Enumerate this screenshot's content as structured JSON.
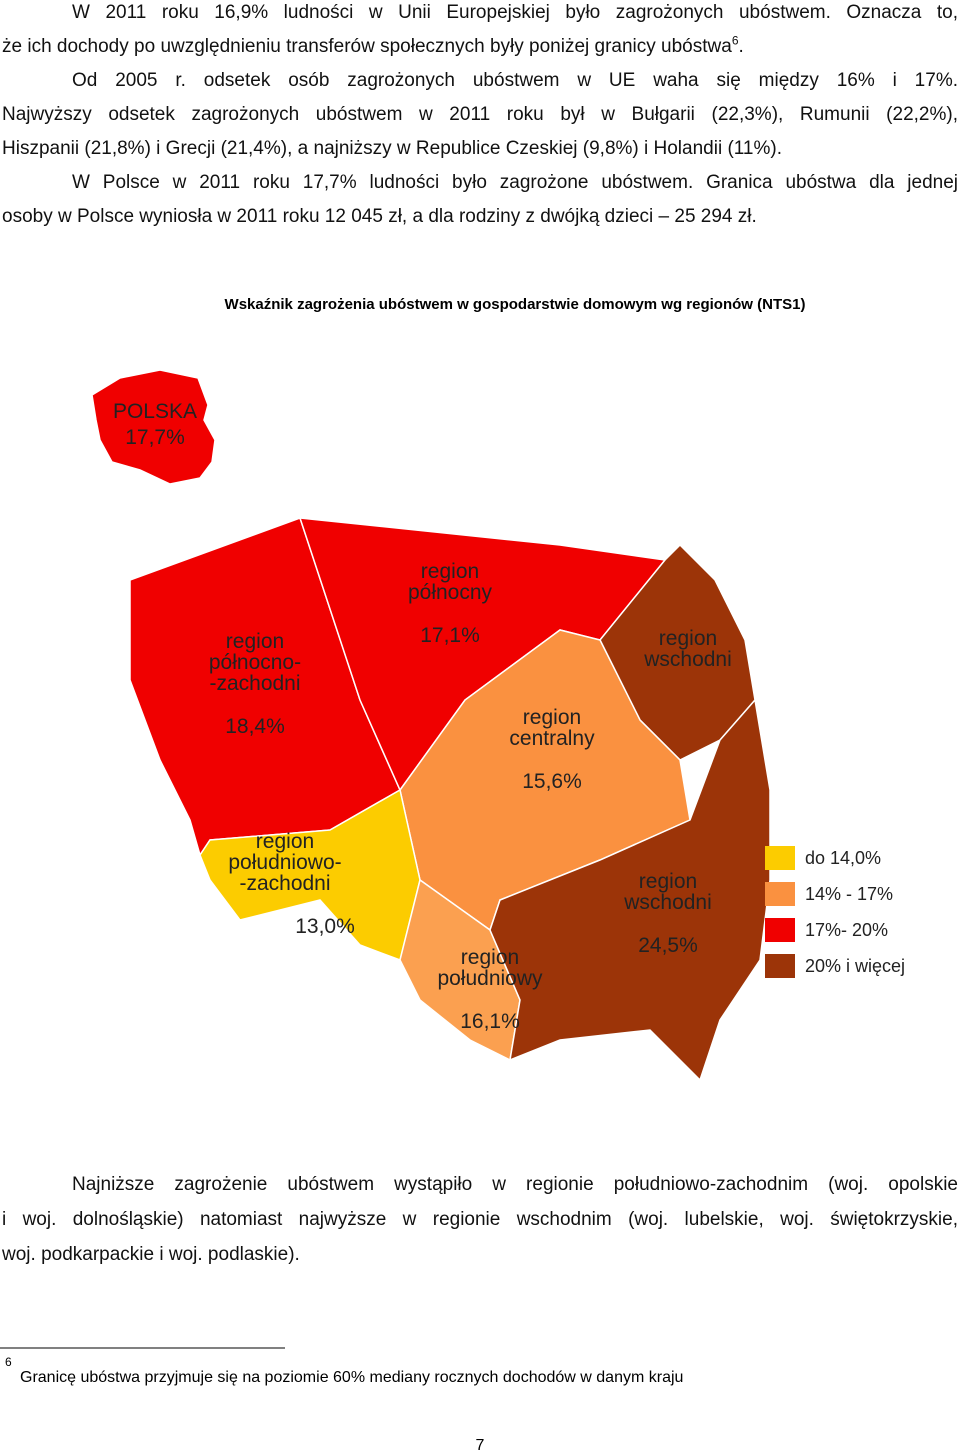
{
  "paragraphs": [
    {
      "lines": [
        {
          "text": "W 2011 roku 16,9% ludności w Unii Europejskiej było zagrożonych ubóstwem. Oznacza to,"
        },
        {
          "text": "że ich dochody po uwzględnieniu transferów społecznych były poniżej granicy ubóstwa",
          "ref": "6",
          "end": "."
        }
      ]
    },
    {
      "lines": [
        {
          "text": "Od 2005 r. odsetek osób zagrożonych ubóstwem w UE waha się między 16% i 17%."
        },
        {
          "text": "Najwyższy odsetek zagrożonych ubóstwem w 2011 roku był w Bułgarii (22,3%), Rumunii (22,2%),"
        },
        {
          "text": "Hiszpanii (21,8%) i Grecji (21,4%), a najniższy w Republice Czeskiej (9,8%) i Holandii (11%)."
        }
      ]
    },
    {
      "lines": [
        {
          "text": "W Polsce w 2011 roku 17,7% ludności było zagrożone ubóstwem. Granica ubóstwa dla jednej"
        },
        {
          "text": "osoby w Polsce wyniosła w 2011 roku 12 045 zł, a dla rodziny z dwójką dzieci – 25 294 zł."
        }
      ]
    },
    {
      "lines": [
        {
          "text": "Najniższe zagrożenie ubóstwem wystąpiło w regionie południowo-zachodnim (woj. opolskie"
        },
        {
          "text": "i woj. dolnośląskie) natomiast najwyższe w regionie wschodnim (woj. lubelskie, woj. świętokrzyskie,"
        },
        {
          "text": "woj. podkarpackie i woj. podlaskie)."
        }
      ]
    }
  ],
  "map": {
    "title": "Wskaźnik zagrożenia ubóstwem w gospodarstwie domowym wg regionów (NTS1)",
    "inset": {
      "label": "POLSKA",
      "value": "17,7%"
    },
    "regions": [
      {
        "lines": [
          "region",
          "północno-",
          "-zachodni"
        ],
        "value": "18,4%"
      },
      {
        "lines": [
          "region",
          "północny"
        ],
        "value": "17,1%"
      },
      {
        "lines": [
          "region",
          "wschodni"
        ]
      },
      {
        "lines": [
          "region",
          "centralny"
        ],
        "value": "15,6%"
      },
      {
        "lines": [
          "region",
          "południowo-",
          "-zachodni"
        ],
        "value": "13,0%"
      },
      {
        "lines": [
          "region",
          "południowy"
        ],
        "value": "16,1%"
      },
      {
        "lines": [
          "region",
          "wschodni"
        ],
        "value": "24,5%"
      }
    ],
    "legend": [
      "do 14,0%",
      "14% - 17%",
      "17%- 20%",
      "20% i więcej"
    ]
  },
  "footnote": {
    "marker": "6",
    "text": "Granicę ubóstwa przyjmuje się na poziomie 60% mediany rocznych dochodów w danym kraju"
  },
  "page_number": "7"
}
